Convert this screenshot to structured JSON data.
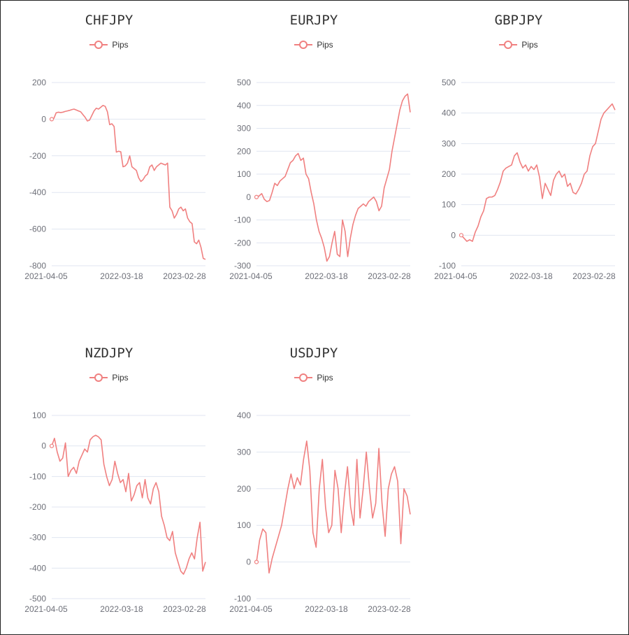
{
  "series_color": "#f08080",
  "grid_color": "#e0e6f1",
  "chart_data": [
    {
      "type": "line",
      "title": "CHFJPY",
      "legend": [
        "Pips"
      ],
      "x_tick_labels": [
        "2021-04-05",
        "2022-03-18",
        "2023-02-28"
      ],
      "y_ticks": [
        200,
        0,
        -200,
        -400,
        -600,
        -800
      ],
      "ylim": [
        -800,
        200
      ],
      "series": [
        {
          "name": "Pips",
          "values": [
            0,
            5,
            35,
            38,
            36,
            38,
            42,
            45,
            48,
            52,
            55,
            50,
            45,
            40,
            25,
            10,
            -10,
            -5,
            20,
            45,
            60,
            55,
            65,
            75,
            70,
            40,
            -30,
            -25,
            -40,
            -180,
            -175,
            -178,
            -260,
            -255,
            -240,
            -200,
            -260,
            -270,
            -280,
            -320,
            -340,
            -330,
            -310,
            -300,
            -260,
            -250,
            -280,
            -260,
            -250,
            -240,
            -245,
            -250,
            -240,
            -480,
            -500,
            -540,
            -520,
            -490,
            -480,
            -500,
            -490,
            -540,
            -560,
            -570,
            -670,
            -680,
            -660,
            -700,
            -760,
            -765
          ]
        }
      ]
    },
    {
      "type": "line",
      "title": "EURJPY",
      "legend": [
        "Pips"
      ],
      "x_tick_labels": [
        "2021-04-05",
        "2022-03-18",
        "2023-02-28"
      ],
      "y_ticks": [
        500,
        400,
        300,
        200,
        100,
        0,
        -100,
        -200,
        -300
      ],
      "ylim": [
        -300,
        500
      ],
      "series": [
        {
          "name": "Pips",
          "values": [
            0,
            5,
            15,
            -10,
            -20,
            -15,
            20,
            60,
            50,
            70,
            80,
            90,
            120,
            150,
            160,
            180,
            190,
            160,
            170,
            100,
            80,
            20,
            -30,
            -100,
            -150,
            -180,
            -220,
            -280,
            -260,
            -200,
            -150,
            -250,
            -260,
            -100,
            -150,
            -260,
            -180,
            -120,
            -80,
            -50,
            -40,
            -30,
            -40,
            -20,
            -10,
            0,
            -20,
            -60,
            -40,
            40,
            80,
            120,
            200,
            260,
            320,
            380,
            420,
            440,
            450,
            370
          ]
        }
      ]
    },
    {
      "type": "line",
      "title": "GBPJPY",
      "legend": [
        "Pips"
      ],
      "x_tick_labels": [
        "2021-04-05",
        "2022-03-18",
        "2023-02-28"
      ],
      "y_ticks": [
        500,
        400,
        300,
        200,
        100,
        0,
        -100
      ],
      "ylim": [
        -100,
        500
      ],
      "series": [
        {
          "name": "Pips",
          "values": [
            0,
            -10,
            -20,
            -15,
            -20,
            10,
            30,
            60,
            80,
            120,
            125,
            125,
            130,
            150,
            175,
            210,
            220,
            225,
            230,
            260,
            270,
            240,
            220,
            230,
            210,
            225,
            215,
            230,
            190,
            120,
            170,
            150,
            130,
            180,
            200,
            210,
            190,
            200,
            160,
            170,
            140,
            135,
            150,
            170,
            200,
            210,
            260,
            290,
            300,
            340,
            380,
            400,
            410,
            420,
            430,
            410
          ]
        }
      ]
    },
    {
      "type": "line",
      "title": "NZDJPY",
      "legend": [
        "Pips"
      ],
      "x_tick_labels": [
        "2021-04-05",
        "2022-03-18",
        "2023-02-28"
      ],
      "y_ticks": [
        100,
        0,
        -100,
        -200,
        -300,
        -400,
        -500
      ],
      "ylim": [
        -500,
        100
      ],
      "series": [
        {
          "name": "Pips",
          "values": [
            0,
            25,
            -20,
            -50,
            -40,
            10,
            -100,
            -80,
            -70,
            -90,
            -50,
            -30,
            -10,
            -20,
            20,
            30,
            35,
            30,
            20,
            -60,
            -100,
            -130,
            -110,
            -50,
            -90,
            -120,
            -110,
            -150,
            -90,
            -180,
            -160,
            -130,
            -120,
            -170,
            -110,
            -170,
            -190,
            -140,
            -120,
            -150,
            -230,
            -260,
            -300,
            -310,
            -280,
            -350,
            -380,
            -410,
            -420,
            -400,
            -370,
            -350,
            -370,
            -300,
            -250,
            -410,
            -380
          ]
        }
      ]
    },
    {
      "type": "line",
      "title": "USDJPY",
      "legend": [
        "Pips"
      ],
      "x_tick_labels": [
        "2021-04-05",
        "2022-03-18",
        "2023-02-28"
      ],
      "y_ticks": [
        400,
        300,
        200,
        100,
        0,
        -100
      ],
      "ylim": [
        -100,
        400
      ],
      "series": [
        {
          "name": "Pips",
          "values": [
            0,
            60,
            90,
            80,
            -30,
            10,
            40,
            70,
            100,
            150,
            200,
            240,
            200,
            230,
            210,
            280,
            330,
            250,
            80,
            40,
            200,
            280,
            150,
            80,
            100,
            250,
            200,
            80,
            180,
            260,
            150,
            100,
            280,
            120,
            200,
            300,
            200,
            120,
            160,
            310,
            160,
            70,
            200,
            240,
            260,
            220,
            50,
            200,
            180,
            130
          ]
        }
      ]
    }
  ]
}
